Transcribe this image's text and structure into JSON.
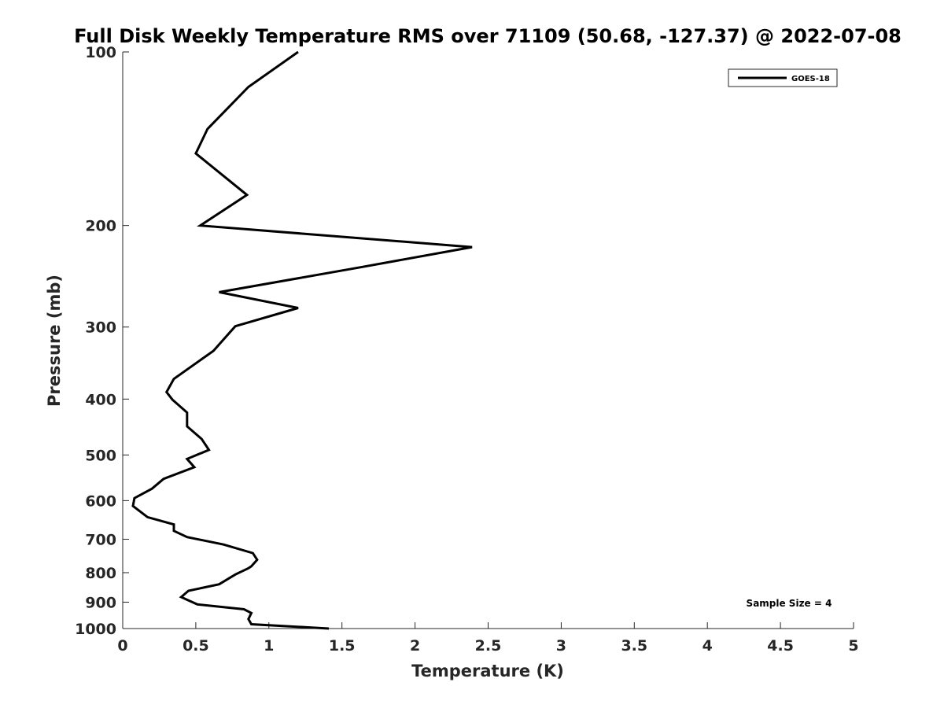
{
  "chart_data": {
    "type": "line",
    "title": "Full Disk Weekly Temperature RMS over 71109 (50.68, -127.37) @ 2022-07-08",
    "xlabel": "Temperature (K)",
    "ylabel": "Pressure (mb)",
    "xlim": [
      0,
      5
    ],
    "ylim": [
      100,
      1000
    ],
    "y_scale": "log",
    "y_reversed": true,
    "x_ticks": [
      "0",
      "0.5",
      "1",
      "1.5",
      "2",
      "2.5",
      "3",
      "3.5",
      "4",
      "4.5",
      "5"
    ],
    "y_ticks": [
      "100",
      "200",
      "300",
      "400",
      "500",
      "600",
      "700",
      "800",
      "900",
      "1000"
    ],
    "grid": false,
    "legend_position": "top-right",
    "series": [
      {
        "name": "GOES-18",
        "color": "#000000",
        "x": [
          1.2,
          0.86,
          0.58,
          0.5,
          0.85,
          0.53,
          2.39,
          1.64,
          0.66,
          1.2,
          0.77,
          0.62,
          0.35,
          0.3,
          0.34,
          0.44,
          0.44,
          0.54,
          0.59,
          0.44,
          0.49,
          0.28,
          0.2,
          0.08,
          0.07,
          0.17,
          0.35,
          0.35,
          0.44,
          0.69,
          0.89,
          0.92,
          0.88,
          0.86,
          0.77,
          0.66,
          0.45,
          0.4,
          0.51,
          0.83,
          0.88,
          0.86,
          0.88,
          1.41
        ],
        "y": [
          100,
          115,
          136,
          150,
          177,
          200,
          218,
          236,
          261,
          278,
          299,
          330,
          369,
          389,
          401,
          422,
          446,
          469,
          490,
          508,
          525,
          550,
          572,
          594,
          613,
          641,
          660,
          677,
          694,
          715,
          740,
          760,
          780,
          786,
          806,
          838,
          860,
          882,
          908,
          926,
          940,
          963,
          983,
          1000
        ]
      }
    ],
    "annotation": "Sample Size = 4"
  }
}
